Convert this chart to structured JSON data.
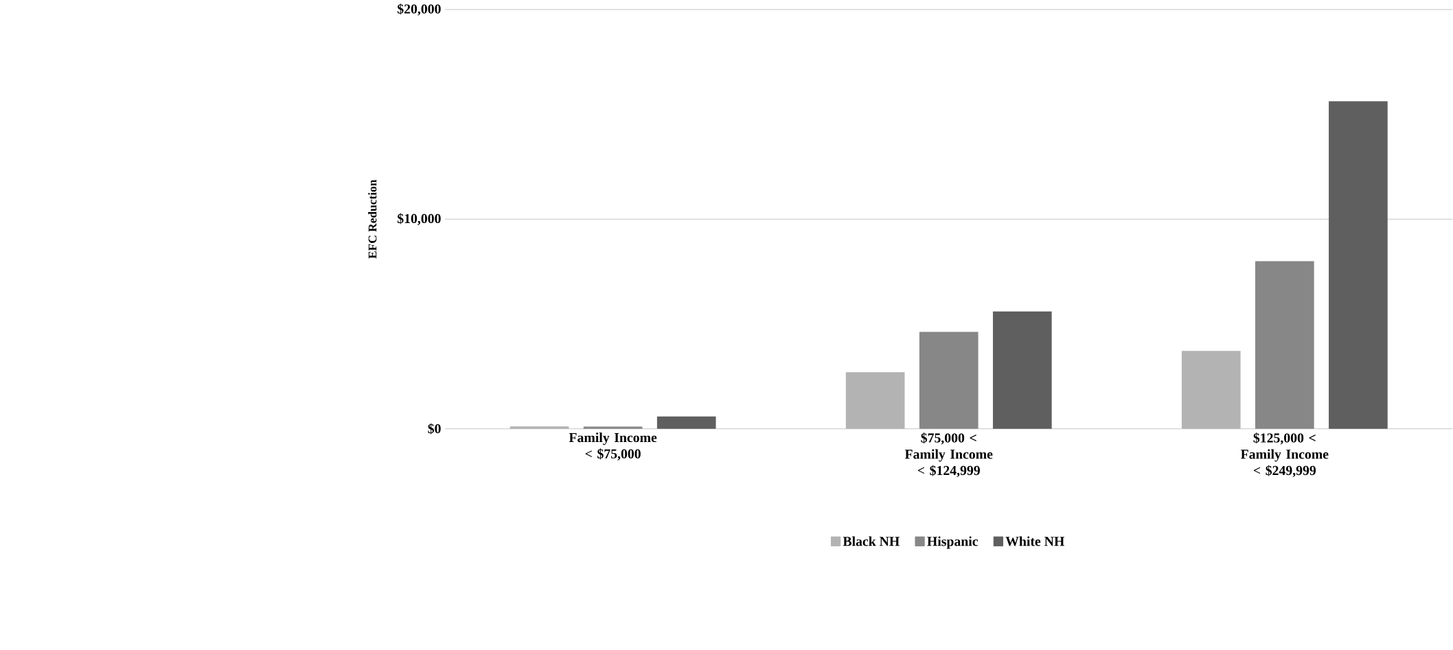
{
  "chart_data": {
    "type": "bar",
    "ylabel": "EFC Reduction",
    "categories": [
      "Family Income < $75,000",
      "$75,000 < Family Income < $124,999",
      "$125,000 < Family Income < $249,999"
    ],
    "series": [
      {
        "name": "Black NH",
        "color": "#b3b3b3",
        "values": [
          110,
          2700,
          3710
        ]
      },
      {
        "name": "Hispanic",
        "color": "#878787",
        "values": [
          100,
          4620,
          8000
        ]
      },
      {
        "name": "White NH",
        "color": "#5f5f5f",
        "values": [
          590,
          5600,
          15630
        ]
      }
    ],
    "ylim": [
      0,
      20000
    ],
    "yticks": [
      {
        "value": 0,
        "label": "$0"
      },
      {
        "value": 10000,
        "label": "$10,000"
      },
      {
        "value": 20000,
        "label": "$20,000"
      }
    ],
    "grid": "y",
    "legend": "bottom"
  }
}
